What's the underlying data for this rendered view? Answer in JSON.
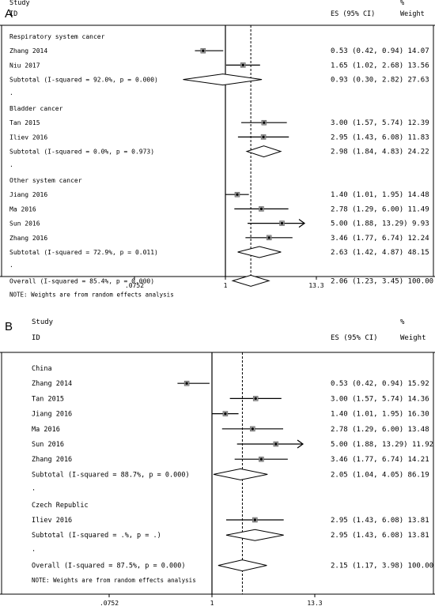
{
  "figure": {
    "panels": [
      {
        "letter": "A",
        "header": {
          "study": "Study",
          "id": "ID",
          "es": "ES (95% CI)",
          "pct": "%",
          "weight": "Weight"
        },
        "axis": {
          "scale": "log",
          "ref_line": 1,
          "overall_line": 2.06,
          "range": [
            0.0752,
            13.3
          ],
          "ticks": [
            ".0752",
            "1",
            "13.3"
          ]
        },
        "groups": [
          {
            "name": "Respiratory system cancer",
            "studies": [
              {
                "label": "Zhang 2014",
                "es": 0.53,
                "lo": 0.42,
                "hi": 0.94,
                "text": "0.53 (0.42, 0.94) 14.07"
              },
              {
                "label": "Niu 2017",
                "es": 1.65,
                "lo": 1.02,
                "hi": 2.68,
                "text": "1.65 (1.02, 2.68) 13.56"
              }
            ],
            "subtotal": {
              "label": "Subtotal  (I-squared = 92.0%, p = 0.000)",
              "es": 0.93,
              "lo": 0.3,
              "hi": 2.82,
              "text": "0.93 (0.30, 2.82) 27.63"
            }
          },
          {
            "name": "Bladder cancer",
            "studies": [
              {
                "label": "Tan 2015",
                "es": 3.0,
                "lo": 1.57,
                "hi": 5.74,
                "text": "3.00 (1.57, 5.74) 12.39"
              },
              {
                "label": "Iliev 2016",
                "es": 2.95,
                "lo": 1.43,
                "hi": 6.08,
                "text": "2.95 (1.43, 6.08) 11.83"
              }
            ],
            "subtotal": {
              "label": "Subtotal  (I-squared = 0.0%, p = 0.973)",
              "es": 2.98,
              "lo": 1.84,
              "hi": 4.83,
              "text": "2.98 (1.84, 4.83) 24.22"
            }
          },
          {
            "name": "Other system cancer",
            "studies": [
              {
                "label": "Jiang 2016",
                "es": 1.4,
                "lo": 1.01,
                "hi": 1.95,
                "text": "1.40 (1.01, 1.95) 14.48"
              },
              {
                "label": "Ma 2016",
                "es": 2.78,
                "lo": 1.29,
                "hi": 6.0,
                "text": "2.78 (1.29, 6.00) 11.49"
              },
              {
                "label": "Sun 2016",
                "es": 5.0,
                "lo": 1.88,
                "hi": 13.29,
                "arrow": true,
                "text": "5.00 (1.88, 13.29) 9.93"
              },
              {
                "label": "Zhang 2016",
                "es": 3.46,
                "lo": 1.77,
                "hi": 6.74,
                "text": "3.46 (1.77, 6.74) 12.24"
              }
            ],
            "subtotal": {
              "label": "Subtotal  (I-squared = 72.9%, p = 0.011)",
              "es": 2.63,
              "lo": 1.42,
              "hi": 4.87,
              "text": "2.63 (1.42, 4.87) 48.15"
            }
          }
        ],
        "overall": {
          "label": "Overall  (I-squared = 85.4%, p = 0.000)",
          "es": 2.06,
          "lo": 1.23,
          "hi": 3.45,
          "text": "2.06 (1.23, 3.45) 100.00"
        },
        "note": "NOTE: Weights are from random effects analysis"
      },
      {
        "letter": "B",
        "header": {
          "study": "Study",
          "id": "ID",
          "es": "ES (95% CI)",
          "pct": "%",
          "weight": "Weight"
        },
        "axis": {
          "scale": "log",
          "ref_line": 1,
          "overall_line": 2.15,
          "range": [
            0.0752,
            13.3
          ],
          "ticks": [
            ".0752",
            "1",
            "13.3"
          ]
        },
        "groups": [
          {
            "name": "China",
            "studies": [
              {
                "label": "Zhang 2014",
                "es": 0.53,
                "lo": 0.42,
                "hi": 0.94,
                "text": "0.53 (0.42, 0.94) 15.92"
              },
              {
                "label": "Tan 2015",
                "es": 3.0,
                "lo": 1.57,
                "hi": 5.74,
                "text": "3.00 (1.57, 5.74) 14.36"
              },
              {
                "label": "Jiang 2016",
                "es": 1.4,
                "lo": 1.01,
                "hi": 1.95,
                "text": "1.40 (1.01, 1.95) 16.30"
              },
              {
                "label": "Ma 2016",
                "es": 2.78,
                "lo": 1.29,
                "hi": 6.0,
                "text": "2.78 (1.29, 6.00) 13.48"
              },
              {
                "label": "Sun 2016",
                "es": 5.0,
                "lo": 1.88,
                "hi": 13.29,
                "arrow": true,
                "text": "5.00 (1.88, 13.29) 11.92"
              },
              {
                "label": "Zhang 2016",
                "es": 3.46,
                "lo": 1.77,
                "hi": 6.74,
                "text": "3.46 (1.77, 6.74) 14.21"
              }
            ],
            "subtotal": {
              "label": "Subtotal  (I-squared = 88.7%, p = 0.000)",
              "es": 2.05,
              "lo": 1.04,
              "hi": 4.05,
              "text": "2.05 (1.04, 4.05) 86.19"
            }
          },
          {
            "name": "Czech Republic",
            "studies": [
              {
                "label": "Iliev 2016",
                "es": 2.95,
                "lo": 1.43,
                "hi": 6.08,
                "text": "2.95 (1.43, 6.08) 13.81"
              }
            ],
            "subtotal": {
              "label": "Subtotal  (I-squared = .%, p = .)",
              "es": 2.95,
              "lo": 1.43,
              "hi": 6.08,
              "text": "2.95 (1.43, 6.08) 13.81"
            }
          }
        ],
        "overall": {
          "label": "Overall  (I-squared = 87.5%, p = 0.000)",
          "es": 2.15,
          "lo": 1.17,
          "hi": 3.98,
          "text": "2.15 (1.17, 3.98) 100.00"
        },
        "note": "NOTE: Weights are from random effects analysis"
      }
    ]
  }
}
